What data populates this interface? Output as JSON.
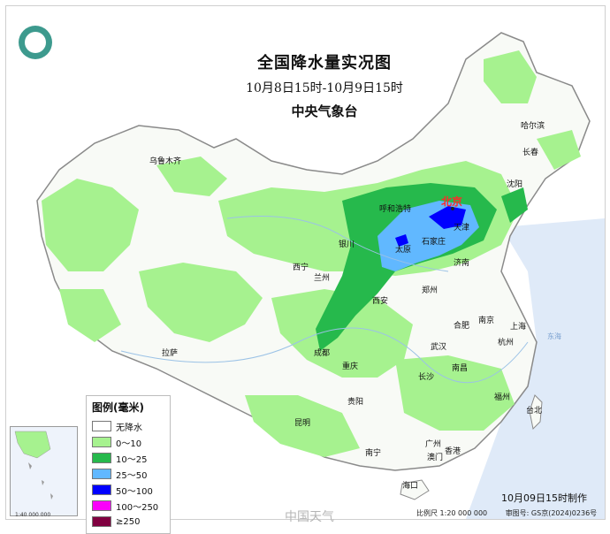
{
  "map": {
    "title": "全国降水量实况图",
    "period": "10月8日15时-10月9日15时",
    "agency": "中央气象台",
    "issued": "10月09日15时制作",
    "scale": "比例尺 1:20 000 000",
    "review_number": "审图号: GS京(2024)0236号",
    "watermark": "中国天气"
  },
  "legend": {
    "title": "图例(毫米)",
    "items": [
      {
        "label": "无降水",
        "color": "#ffffff"
      },
      {
        "label": "0～10",
        "color": "#a6f28f"
      },
      {
        "label": "10～25",
        "color": "#26b94c"
      },
      {
        "label": "25～50",
        "color": "#61b8ff"
      },
      {
        "label": "50～100",
        "color": "#0000ff"
      },
      {
        "label": "100～250",
        "color": "#fa00fa"
      },
      {
        "label": "≥250",
        "color": "#800040"
      }
    ]
  },
  "cities": {
    "beijing": "北京",
    "tianjin": "天津",
    "shijiazhuang": "石家庄",
    "taiyuan": "太原",
    "hohhot": "呼和浩特",
    "yinchuan": "银川",
    "lanzhou": "兰州",
    "xining": "西宁",
    "xian": "西安",
    "zhengzhou": "郑州",
    "jinan": "济南",
    "shenyang": "沈阳",
    "changchun": "长春",
    "harbin": "哈尔滨",
    "urumqi": "乌鲁木齐",
    "lhasa": "拉萨",
    "chengdu": "成都",
    "chongqing": "重庆",
    "guiyang": "贵阳",
    "kunming": "昆明",
    "nanning": "南宁",
    "guangzhou": "广州",
    "hongkong": "香港",
    "macau": "澳门",
    "haikou": "海口",
    "changsha": "长沙",
    "nanchang": "南昌",
    "wuhan": "武汉",
    "hefei": "合肥",
    "nanjing": "南京",
    "shanghai": "上海",
    "hangzhou": "杭州",
    "fuzhou": "福州",
    "taipei": "台北"
  },
  "inset": {
    "scale": "1:40 000 000"
  },
  "sea": {
    "east": "东海"
  }
}
